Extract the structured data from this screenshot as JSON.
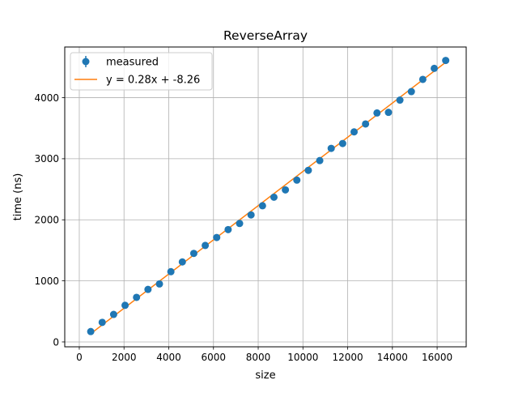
{
  "chart_data": {
    "type": "scatter",
    "title": "ReverseArray",
    "xlabel": "size",
    "ylabel": "time (ns)",
    "xlim": [
      -650,
      17300
    ],
    "ylim": [
      -80,
      4830
    ],
    "xticks": [
      0,
      2000,
      4000,
      6000,
      8000,
      10000,
      12000,
      14000,
      16000
    ],
    "yticks": [
      0,
      1000,
      2000,
      3000,
      4000
    ],
    "grid": true,
    "legend_position": "top-left",
    "series": [
      {
        "name": "measured",
        "kind": "points_with_errorbars",
        "color": "#1f77b4",
        "x": [
          512,
          1024,
          1536,
          2048,
          2560,
          3072,
          3584,
          4096,
          4608,
          5120,
          5632,
          6144,
          6656,
          7168,
          7680,
          8192,
          8704,
          9216,
          9728,
          10240,
          10752,
          11264,
          11776,
          12288,
          12800,
          13312,
          13824,
          14336,
          14848,
          15360,
          15872,
          16384
        ],
        "y": [
          170,
          320,
          450,
          600,
          730,
          860,
          950,
          1150,
          1310,
          1450,
          1580,
          1710,
          1840,
          1940,
          2080,
          2230,
          2370,
          2490,
          2650,
          2810,
          2970,
          3170,
          3250,
          3440,
          3570,
          3750,
          3760,
          3960,
          4100,
          4300,
          4480,
          4610
        ]
      },
      {
        "name": "y = 0.28x + -8.26",
        "kind": "line",
        "color": "#ff7f0e",
        "slope": 0.28,
        "intercept": -8.26
      }
    ]
  }
}
